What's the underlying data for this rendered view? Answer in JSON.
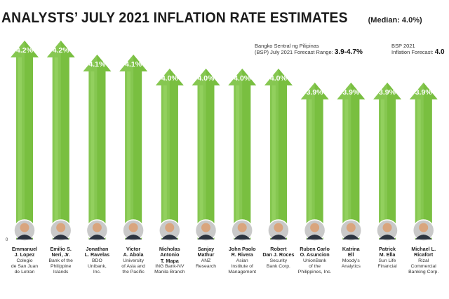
{
  "header": {
    "title": "ANALYSTS’ JULY 2021 INFLATION RATE ESTIMATES",
    "median": "(Median: 4.0%)"
  },
  "notes": {
    "bsp_range_line1": "Bangko Sentral ng Pilipinas",
    "bsp_range_line2": "(BSP) July 2021 Forecast Range:",
    "bsp_range_value": "3.9-4.7%",
    "bsp_forecast_line1": "BSP 2021",
    "bsp_forecast_line2": "Inflation Forecast:",
    "bsp_forecast_value": "4.0"
  },
  "colors": {
    "arrow_fill": "#7cc242",
    "arrow_dark": "#5a9e2a",
    "arrow_highlight": "#9bd668",
    "value_text": "#ffffff"
  },
  "chart_data": {
    "type": "bar",
    "title": "ANALYSTS’ JULY 2021 INFLATION RATE ESTIMATES",
    "subtitle": "(Median: 4.0%)",
    "ylim": [
      0,
      4.2
    ],
    "axis_zero_label": "0",
    "value_labels": [
      "4.2%",
      "4.2%",
      "4.1%",
      "4.1%",
      "4.0%",
      "4.0%",
      "4.0%",
      "4.0%",
      "3.9%",
      "3.9%",
      "3.9%",
      "3.9%"
    ],
    "values": [
      4.2,
      4.2,
      4.1,
      4.1,
      4.0,
      4.0,
      4.0,
      4.0,
      3.9,
      3.9,
      3.9,
      3.9
    ],
    "categories": [
      {
        "name": [
          "Emmanuel",
          "J. Lopez"
        ],
        "org": [
          "Colegio",
          "de San Juan",
          "de Letran"
        ]
      },
      {
        "name": [
          "Emilio S.",
          "Neri, Jr."
        ],
        "org": [
          "Bank of the",
          "Philippine",
          "Islands"
        ]
      },
      {
        "name": [
          "Jonathan",
          "L. Ravelas"
        ],
        "org": [
          "BDO",
          "Unibank,",
          "Inc."
        ]
      },
      {
        "name": [
          "Victor",
          "A. Abola"
        ],
        "org": [
          "University",
          "of Asia and",
          "the Pacific"
        ]
      },
      {
        "name": [
          "Nicholas",
          "Antonio",
          "T. Mapa"
        ],
        "org": [
          "ING Bank-NV",
          "Manila Branch"
        ]
      },
      {
        "name": [
          "Sanjay",
          "Mathur"
        ],
        "org": [
          "ANZ",
          "Research"
        ]
      },
      {
        "name": [
          "John Paolo",
          "R. Rivera"
        ],
        "org": [
          "Asian",
          "Institute of",
          "Management"
        ]
      },
      {
        "name": [
          "Robert",
          "Dan J. Roces"
        ],
        "org": [
          "Security",
          "Bank Corp."
        ]
      },
      {
        "name": [
          "Ruben Carlo",
          "O. Asuncion"
        ],
        "org": [
          "UnionBank",
          "of the",
          "Philippines, Inc."
        ]
      },
      {
        "name": [
          "Katrina",
          "Ell"
        ],
        "org": [
          "Moody's",
          "Analytics"
        ]
      },
      {
        "name": [
          "Patrick",
          "M. Ella"
        ],
        "org": [
          "Sun Life",
          "Financial"
        ]
      },
      {
        "name": [
          "Michael L.",
          "Ricafort"
        ],
        "org": [
          "Rizal",
          "Commercial",
          "Banking Corp."
        ]
      }
    ]
  }
}
